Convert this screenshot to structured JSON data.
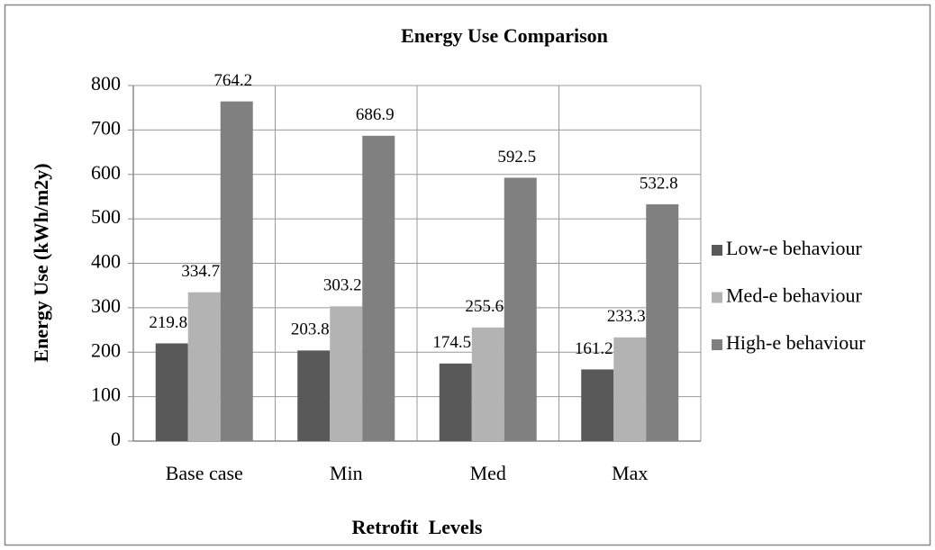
{
  "chart_data": {
    "type": "bar",
    "title": "Energy Use Comparison",
    "x_label": "Retrofit  Levels",
    "y_label": "Energy Use (kWh/m2y)",
    "categories": [
      "Base case",
      "Min",
      "Med",
      "Max"
    ],
    "series": [
      {
        "name": "Low-e behaviour",
        "color": "#595959",
        "values": [
          219.8,
          203.8,
          174.5,
          161.2
        ]
      },
      {
        "name": "Med-e behaviour",
        "color": "#b3b3b3",
        "values": [
          334.7,
          303.2,
          255.6,
          233.3
        ]
      },
      {
        "name": "High-e behaviour",
        "color": "#808080",
        "values": [
          764.2,
          686.9,
          592.5,
          532.8
        ]
      }
    ],
    "ylim": [
      0,
      800
    ],
    "yticks": [
      0,
      100,
      200,
      300,
      400,
      500,
      600,
      700,
      800
    ],
    "grid": true,
    "legend": "right"
  }
}
